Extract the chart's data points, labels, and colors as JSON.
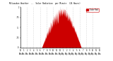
{
  "bg_color": "#ffffff",
  "fill_color": "#cc0000",
  "line_color": "#cc0000",
  "grid_color": "#bbbbbb",
  "ylim": [
    0,
    1.0
  ],
  "xlim": [
    0,
    1440
  ],
  "legend_label": "Solar Rad",
  "legend_color": "#cc0000",
  "num_points": 1440,
  "sunrise": 390,
  "sunset": 1110,
  "peak_minute": 720,
  "ytick_vals": [
    0.0,
    0.25,
    0.5,
    0.75,
    1.0
  ],
  "ytick_labels": [
    "0",
    ".25",
    ".5",
    ".75",
    "1"
  ],
  "xtick_spacing": 60,
  "title_left": "Milwaukee Weather  --",
  "title_right": "Solar Radiation\nper Minute (24 Hours)"
}
